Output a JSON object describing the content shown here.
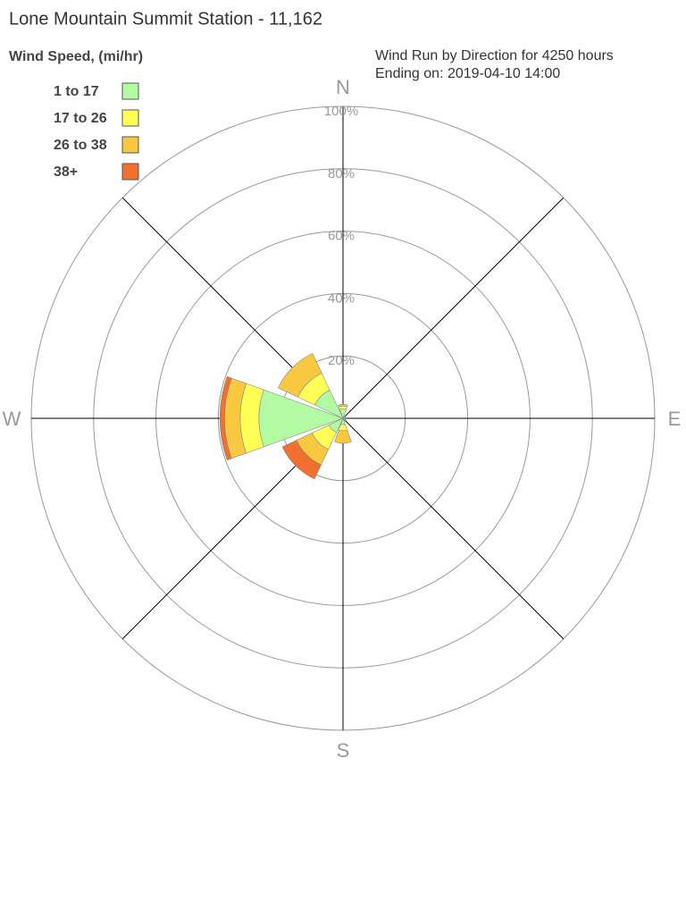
{
  "chart_data": {
    "type": "windrose",
    "title": "Lone Mountain Summit Station - 11,162",
    "subtitle": [
      "Wind Run by Direction for 4250 hours",
      "Ending on: 2019-04-10 14:00"
    ],
    "legend_title": "Wind Speed, (mi/hr)",
    "categories": [
      "N",
      null,
      "E",
      null,
      "S",
      null,
      "W",
      null
    ],
    "rlim": [
      0,
      100
    ],
    "rticks": [
      {
        "value": 20,
        "label": "20%"
      },
      {
        "value": 40,
        "label": "40%"
      },
      {
        "value": 60,
        "label": "60%"
      },
      {
        "value": 80,
        "label": "80%"
      },
      {
        "value": 100,
        "label": "100%"
      }
    ],
    "series": [
      {
        "name": "1 to 17",
        "color": "#b3fba3",
        "values": [
          3,
          0.5,
          0.5,
          0.5,
          2,
          5,
          27,
          10
        ]
      },
      {
        "name": "17 to 26",
        "color": "#ffff55",
        "values": [
          1,
          0.3,
          0.3,
          0.3,
          2,
          6,
          6,
          6
        ]
      },
      {
        "name": "26 to 38",
        "color": "#f8c840",
        "values": [
          0.5,
          0.2,
          0.2,
          0.2,
          4,
          5.5,
          5,
          7
        ]
      },
      {
        "name": "38+",
        "color": "#f07030",
        "values": [
          0,
          0,
          0,
          0,
          0,
          5,
          1.5,
          0
        ]
      }
    ]
  }
}
